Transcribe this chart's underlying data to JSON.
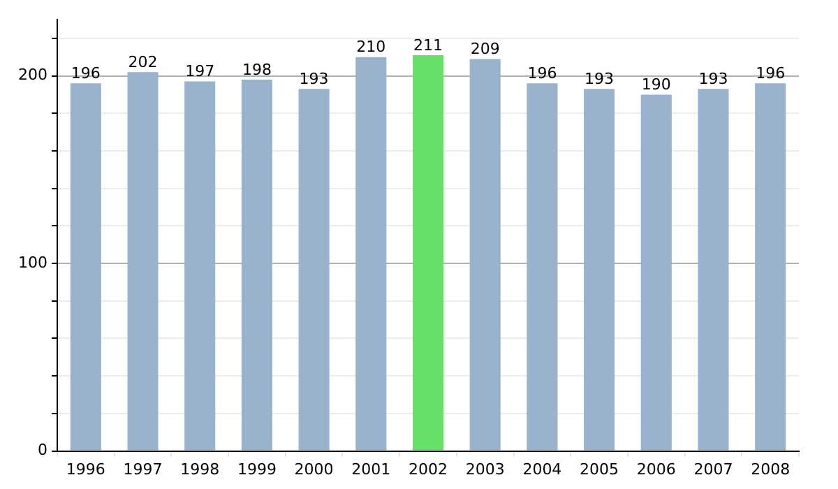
{
  "chart_data": {
    "type": "bar",
    "categories": [
      "1996",
      "1997",
      "1998",
      "1999",
      "2000",
      "2001",
      "2002",
      "2003",
      "2004",
      "2005",
      "2006",
      "2007",
      "2008"
    ],
    "values": [
      196,
      202,
      197,
      198,
      193,
      210,
      211,
      209,
      196,
      193,
      190,
      193,
      196
    ],
    "colors": [
      "#9ab3cd",
      "#9ab3cd",
      "#9ab3cd",
      "#9ab3cd",
      "#9ab3cd",
      "#9ab3cd",
      "#66e066",
      "#9ab3cd",
      "#9ab3cd",
      "#9ab3cd",
      "#9ab3cd",
      "#9ab3cd",
      "#9ab3cd"
    ],
    "ylim": [
      0,
      230
    ],
    "yticks": [
      0,
      {
        "value": 20,
        "label": null
      },
      {
        "value": 40,
        "label": null
      },
      {
        "value": 60,
        "label": null
      },
      {
        "value": 80,
        "label": null
      },
      100,
      {
        "value": 120,
        "label": null
      },
      {
        "value": 140,
        "label": null
      },
      {
        "value": 160,
        "label": null
      },
      {
        "value": 180,
        "label": null
      },
      200,
      {
        "value": 220,
        "label": null
      }
    ],
    "grid": true,
    "data_labels": true,
    "legend": false
  }
}
